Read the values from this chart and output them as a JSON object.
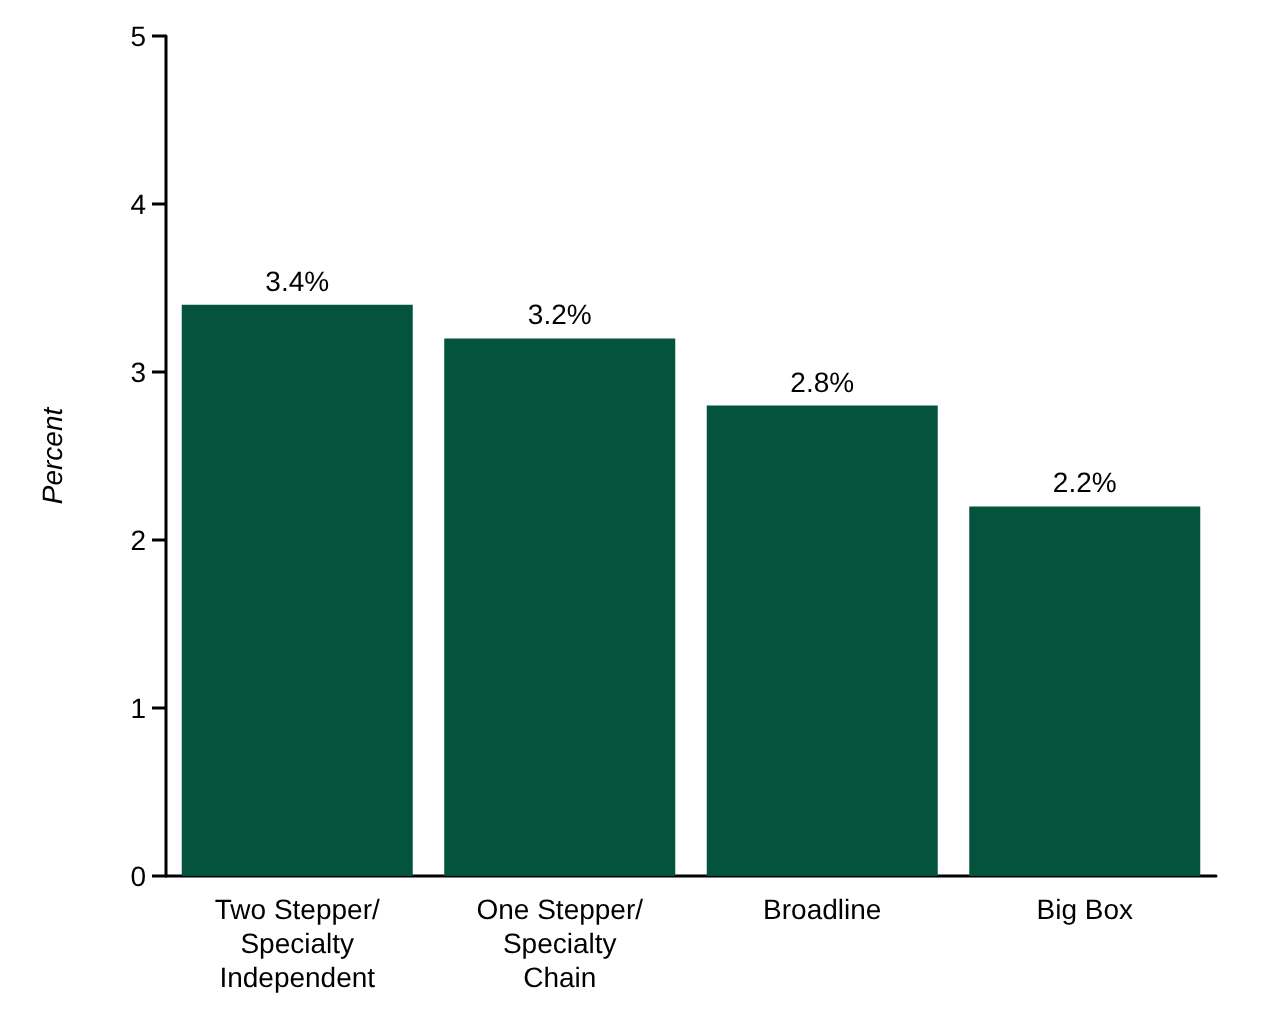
{
  "chart_data": {
    "type": "bar",
    "ylabel": "Percent",
    "categories": [
      "Two Stepper/\nSpecialty\nIndependent",
      "One Stepper/\nSpecialty\nChain",
      "Broadline",
      "Big Box"
    ],
    "values": [
      3.4,
      3.2,
      2.8,
      2.2
    ],
    "value_labels": [
      "3.4%",
      "3.2%",
      "2.8%",
      "2.2%"
    ],
    "color": "#03533d",
    "ylim": [
      0,
      5
    ],
    "yticks": [
      0,
      1,
      2,
      3,
      4,
      5
    ],
    "grid": false
  }
}
